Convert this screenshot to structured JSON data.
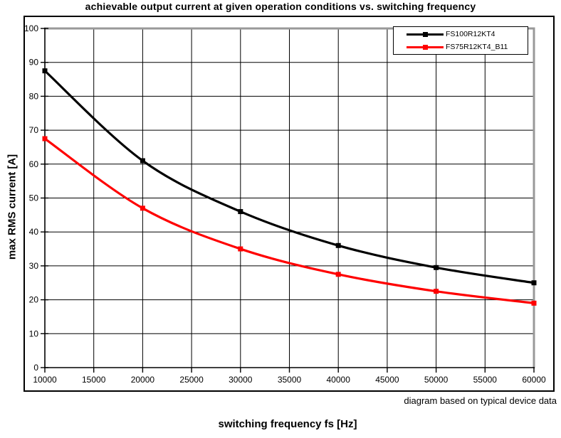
{
  "title": "achievable output current at given operation conditions vs. switching frequency",
  "credit": "diagram based on typical device data",
  "colors": {
    "axis": "#000000",
    "gridline": "#000000",
    "plot_border_shadow": "#999999",
    "series_black": "#000000",
    "series_red": "#ff0000",
    "background": "#ffffff"
  },
  "chart_data": {
    "type": "line",
    "title": "achievable output current at given operation conditions vs. switching frequency",
    "xlabel": "switching frequency fs [Hz]",
    "ylabel": "max RMS current [A]",
    "x": [
      10000,
      20000,
      30000,
      40000,
      50000,
      60000
    ],
    "series": [
      {
        "name": "FS100R12KT4",
        "color": "#000000",
        "values": [
          87.5,
          61,
          46,
          36,
          29.5,
          25
        ]
      },
      {
        "name": "FS75R12KT4_B11",
        "color": "#ff0000",
        "values": [
          67.5,
          47,
          35,
          27.5,
          22.5,
          19
        ]
      }
    ],
    "xlim": [
      10000,
      60000
    ],
    "ylim": [
      0,
      100
    ],
    "x_ticks": [
      10000,
      15000,
      20000,
      25000,
      30000,
      35000,
      40000,
      45000,
      50000,
      55000,
      60000
    ],
    "y_ticks": [
      0,
      10,
      20,
      30,
      40,
      50,
      60,
      70,
      80,
      90,
      100
    ],
    "grid": true,
    "line_smooth": true,
    "marker": "square",
    "legend_position": "top-right",
    "annotation": "diagram based on typical device data"
  }
}
